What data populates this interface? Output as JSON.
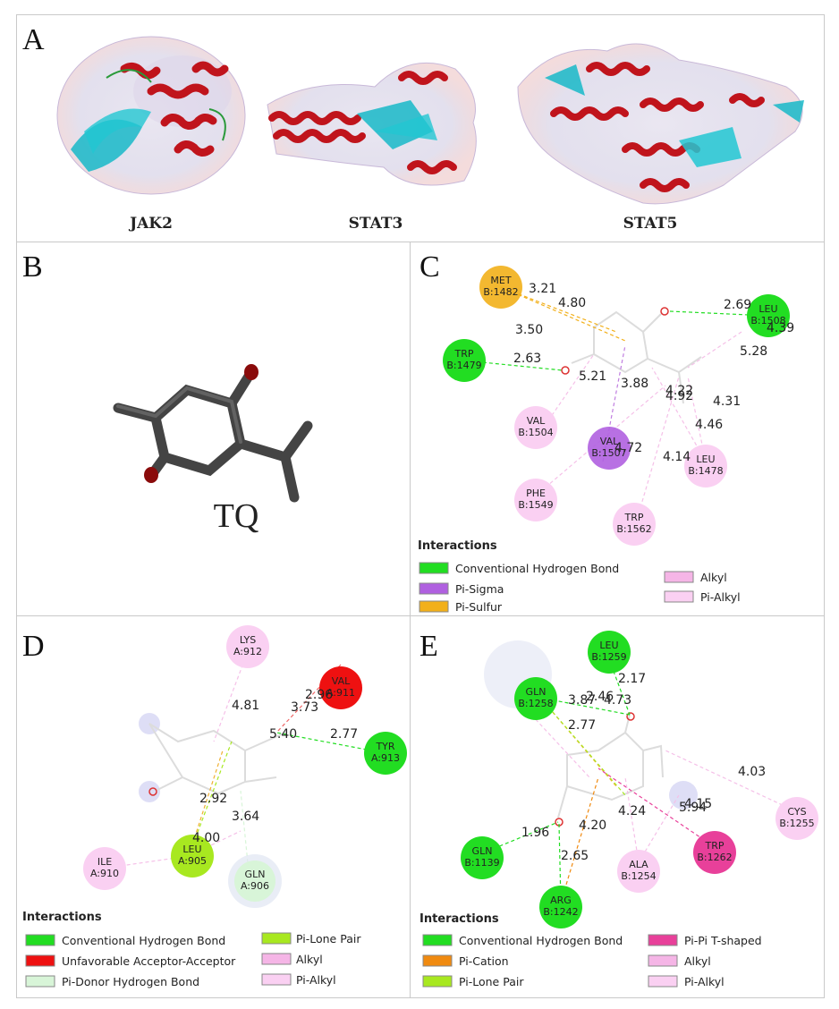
{
  "panels": {
    "A": {
      "label": "A",
      "proteins": [
        "JAK2",
        "STAT3",
        "STAT5"
      ]
    },
    "B": {
      "label": "B",
      "molecule": "TQ"
    },
    "C": {
      "label": "C",
      "residues": [
        {
          "name": "MET",
          "id": "B:1482",
          "type": "pi-sulfur"
        },
        {
          "name": "LEU",
          "id": "B:1508",
          "type": "hbond"
        },
        {
          "name": "TRP",
          "id": "B:1479",
          "type": "hbond"
        },
        {
          "name": "VAL",
          "id": "B:1504",
          "type": "pi-alkyl"
        },
        {
          "name": "VAL",
          "id": "B:1507",
          "type": "pi-sigma"
        },
        {
          "name": "LEU",
          "id": "B:1478",
          "type": "pi-alkyl"
        },
        {
          "name": "PHE",
          "id": "B:1549",
          "type": "pi-alkyl"
        },
        {
          "name": "TRP",
          "id": "B:1562",
          "type": "pi-alkyl"
        }
      ],
      "distances": [
        "3.21",
        "4.80",
        "2.69",
        "4.39",
        "3.50",
        "2.63",
        "5.21",
        "5.28",
        "3.88",
        "4.22",
        "4.92",
        "4.31",
        "4.46",
        "4.72",
        "4.14"
      ],
      "legend_title": "Interactions",
      "legend": [
        {
          "label": "Conventional Hydrogen Bond",
          "color": "#22dd22"
        },
        {
          "label": "Pi-Sigma",
          "color": "#b060e0"
        },
        {
          "label": "Pi-Sulfur",
          "color": "#f2b01a"
        },
        {
          "label": "Alkyl",
          "color": "#f5b5e6"
        },
        {
          "label": "Pi-Alkyl",
          "color": "#fad0f2"
        }
      ]
    },
    "D": {
      "label": "D",
      "residues": [
        {
          "name": "LYS",
          "id": "A:912",
          "type": "alkyl"
        },
        {
          "name": "VAL",
          "id": "A:911",
          "type": "unfavorable"
        },
        {
          "name": "TYR",
          "id": "A:913",
          "type": "hbond"
        },
        {
          "name": "ILE",
          "id": "A:910",
          "type": "alkyl"
        },
        {
          "name": "LEU",
          "id": "A:905",
          "type": "pi-lone-pair"
        },
        {
          "name": "GLN",
          "id": "A:906",
          "type": "pi-donor"
        }
      ],
      "distances": [
        "4.81",
        "3.73",
        "2.96",
        "5.40",
        "2.77",
        "2.92",
        "3.64",
        "4.00"
      ],
      "legend_title": "Interactions",
      "legend": [
        {
          "label": "Conventional Hydrogen Bond",
          "color": "#22dd22"
        },
        {
          "label": "Unfavorable Acceptor-Acceptor",
          "color": "#ee1111"
        },
        {
          "label": "Pi-Donor Hydrogen Bond",
          "color": "#d8f5d8"
        },
        {
          "label": "Pi-Lone Pair",
          "color": "#a8e820"
        },
        {
          "label": "Alkyl",
          "color": "#f5b5e6"
        },
        {
          "label": "Pi-Alkyl",
          "color": "#fad0f2"
        }
      ]
    },
    "E": {
      "label": "E",
      "residues": [
        {
          "name": "LEU",
          "id": "B:1259",
          "type": "hbond"
        },
        {
          "name": "GLN",
          "id": "B:1258",
          "type": "hbond"
        },
        {
          "name": "CYS",
          "id": "B:1255",
          "type": "alkyl"
        },
        {
          "name": "GLN",
          "id": "B:1139",
          "type": "hbond"
        },
        {
          "name": "TRP",
          "id": "B:1262",
          "type": "pi-pi"
        },
        {
          "name": "ALA",
          "id": "B:1254",
          "type": "pi-alkyl"
        },
        {
          "name": "ARG",
          "id": "B:1242",
          "type": "hbond"
        }
      ],
      "distances": [
        "2.17",
        "3.87",
        "2.46",
        "4.73",
        "2.77",
        "4.03",
        "5.94",
        "4.15",
        "1.96",
        "4.20",
        "4.24",
        "2.65"
      ],
      "legend_title": "Interactions",
      "legend": [
        {
          "label": "Conventional Hydrogen Bond",
          "color": "#22dd22"
        },
        {
          "label": "Pi-Cation",
          "color": "#f08a10"
        },
        {
          "label": "Pi-Lone Pair",
          "color": "#a8e820"
        },
        {
          "label": "Pi-Pi T-shaped",
          "color": "#e8409a"
        },
        {
          "label": "Alkyl",
          "color": "#f5b5e6"
        },
        {
          "label": "Pi-Alkyl",
          "color": "#fad0f2"
        }
      ]
    }
  },
  "colors": {
    "hbond": "#22dd22",
    "pi_sigma": "#b060e0",
    "pi_sulfur": "#f2b01a",
    "unfavorable": "#ee1111",
    "alkyl": "#f5b5e6",
    "pi_alkyl": "#fad0f2",
    "helix": "#c0141c",
    "sheet": "#18b8c8"
  }
}
